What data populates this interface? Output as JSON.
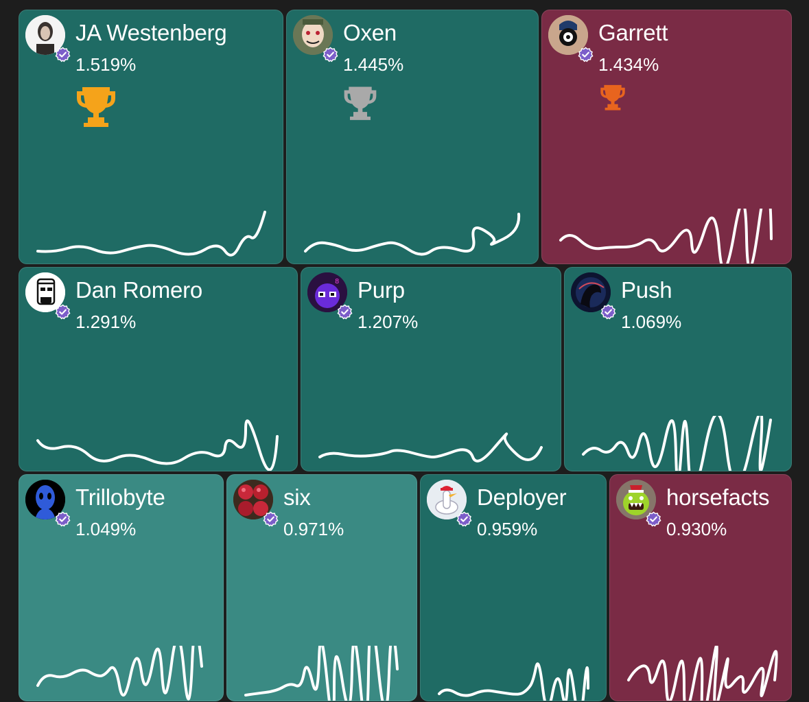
{
  "colors": {
    "background": "#1d1d1d",
    "tile_dark_teal": "#1f6b64",
    "tile_light_teal": "#3a8a83",
    "tile_maroon": "#7a2b45",
    "verified_badge": "#7c5ec9",
    "trophy_gold": "#f5a31a",
    "trophy_silver": "#a9a9a9",
    "trophy_bronze": "#e8641e"
  },
  "tiles": [
    {
      "name": "JA Westenberg",
      "percent": "1.519%",
      "trophy": "gold-trophy-icon",
      "verified": true
    },
    {
      "name": "Oxen",
      "percent": "1.445%",
      "trophy": "silver-trophy-icon",
      "verified": true
    },
    {
      "name": "Garrett",
      "percent": "1.434%",
      "trophy": "bronze-trophy-icon",
      "verified": true
    },
    {
      "name": "Dan Romero",
      "percent": "1.291%",
      "verified": true
    },
    {
      "name": "Purp",
      "percent": "1.207%",
      "verified": true
    },
    {
      "name": "Push",
      "percent": "1.069%",
      "verified": true
    },
    {
      "name": "Trillobyte",
      "percent": "1.049%",
      "verified": true
    },
    {
      "name": "six",
      "percent": "0.971%",
      "verified": true
    },
    {
      "name": "Deployer",
      "percent": "0.959%",
      "verified": true
    },
    {
      "name": "horsefacts",
      "percent": "0.930%",
      "verified": true
    }
  ]
}
